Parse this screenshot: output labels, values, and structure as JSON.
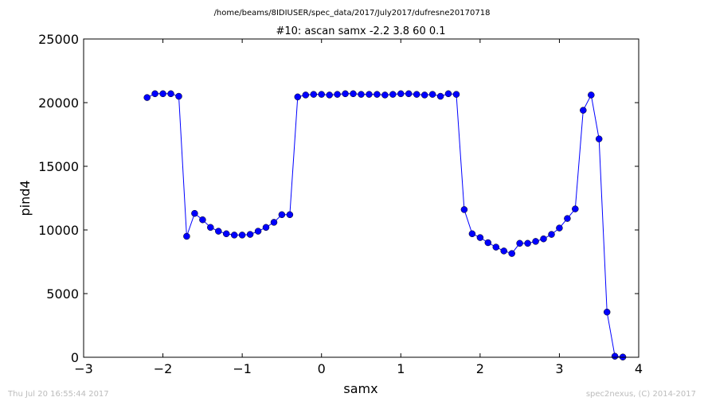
{
  "chart_data": {
    "type": "line",
    "suptitle": "/home/beams/8IDIUSER/spec_data/2017/July2017/dufresne20170718",
    "title": "#10: ascan  samx -2.2 3.8  60 0.1",
    "xlabel": "samx",
    "ylabel": "pind4",
    "xlim": [
      -3,
      4
    ],
    "ylim": [
      0,
      25000
    ],
    "xticks": [
      -3,
      -2,
      -1,
      0,
      1,
      2,
      3,
      4
    ],
    "xtick_labels": [
      "−3",
      "−2",
      "−1",
      "0",
      "1",
      "2",
      "3",
      "4"
    ],
    "yticks": [
      0,
      5000,
      10000,
      15000,
      20000,
      25000
    ],
    "ytick_labels": [
      "0",
      "5000",
      "10000",
      "15000",
      "20000",
      "25000"
    ],
    "grid": false,
    "series": [
      {
        "color": "#0000ff",
        "marker": "circle",
        "x": [
          -2.2,
          -2.1,
          -2.0,
          -1.9,
          -1.8,
          -1.7,
          -1.6,
          -1.5,
          -1.4,
          -1.3,
          -1.2,
          -1.1,
          -1.0,
          -0.9,
          -0.8,
          -0.7,
          -0.6,
          -0.5,
          -0.4,
          -0.3,
          -0.2,
          -0.1,
          0.0,
          0.1,
          0.2,
          0.3,
          0.4,
          0.5,
          0.6,
          0.7,
          0.8,
          0.9,
          1.0,
          1.1,
          1.2,
          1.3,
          1.4,
          1.5,
          1.6,
          1.7,
          1.8,
          1.9,
          2.0,
          2.1,
          2.2,
          2.3,
          2.4,
          2.5,
          2.6,
          2.7,
          2.8,
          2.9,
          3.0,
          3.1,
          3.2,
          3.3,
          3.4,
          3.5,
          3.6,
          3.7,
          3.8
        ],
        "y": [
          20400,
          20700,
          20700,
          20700,
          20500,
          9500,
          11300,
          10800,
          10200,
          9900,
          9700,
          9600,
          9600,
          9650,
          9900,
          10200,
          10600,
          11200,
          11200,
          20450,
          20600,
          20650,
          20650,
          20600,
          20650,
          20700,
          20700,
          20650,
          20650,
          20650,
          20600,
          20650,
          20700,
          20700,
          20650,
          20600,
          20650,
          20500,
          20700,
          20650,
          11600,
          9700,
          9400,
          9000,
          8650,
          8350,
          8150,
          8950,
          8950,
          9100,
          9300,
          9650,
          10150,
          10900,
          11650,
          19400,
          20600,
          17150,
          3550,
          80,
          20
        ]
      }
    ]
  },
  "footer": {
    "timestamp": "Thu Jul 20 16:55:44 2017",
    "credit": "spec2nexus, (C) 2014-2017"
  }
}
